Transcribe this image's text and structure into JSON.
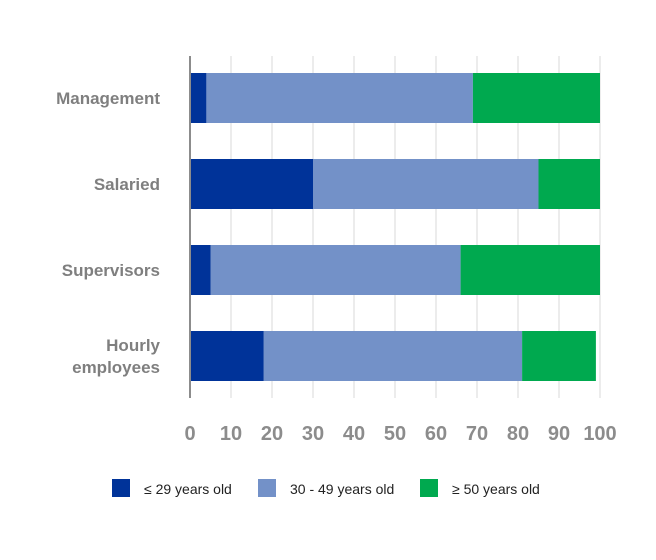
{
  "chart_data": {
    "type": "bar",
    "orientation": "horizontal",
    "stacked": true,
    "title": "",
    "xlabel": "",
    "ylabel": "",
    "xlim": [
      0,
      100
    ],
    "xticks": [
      "0",
      "10",
      "20",
      "30",
      "40",
      "50",
      "60",
      "70",
      "80",
      "90",
      "100"
    ],
    "grid": true,
    "legend_position": "bottom",
    "categories": [
      [
        "Management"
      ],
      [
        "Salaried"
      ],
      [
        "Supervisors"
      ],
      [
        "Hourly",
        "employees"
      ]
    ],
    "series": [
      {
        "name": "≤ 29 years old",
        "color": "#003399",
        "values": [
          4,
          30,
          5,
          18
        ]
      },
      {
        "name": "30 - 49 years old",
        "color": "#7391c8",
        "values": [
          65,
          55,
          61,
          63
        ]
      },
      {
        "name": "≥ 50 years old",
        "color": "#00a94f",
        "values": [
          31,
          15,
          34,
          18
        ]
      }
    ]
  }
}
